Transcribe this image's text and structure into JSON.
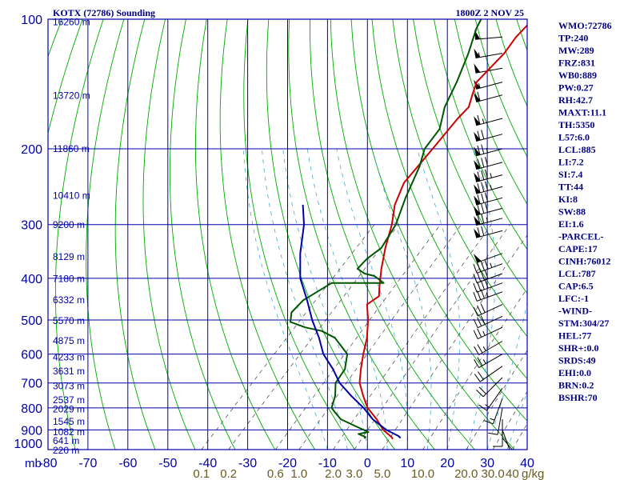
{
  "chart_data": {
    "type": "line",
    "title": "KOTX (72786) Sounding",
    "timestamp": "1800Z  2 NOV 25",
    "pressure_unit_label": "mb",
    "y_scale": "log",
    "ylim": [
      1000,
      100
    ],
    "xlim": [
      -80,
      40
    ],
    "pressure_ticks": [
      100,
      200,
      300,
      400,
      500,
      600,
      700,
      800,
      900,
      1000
    ],
    "temperature_ticks": [
      -80,
      -70,
      -60,
      -50,
      -40,
      -30,
      -20,
      -10,
      0,
      10,
      20,
      30,
      40
    ],
    "temperature_tick_labels": [
      "-80",
      "-70",
      "-60",
      "-50",
      "-40",
      "-30",
      "-20",
      "-10",
      "0",
      "10",
      "20",
      "30",
      "40"
    ],
    "mixing_ratio_labels": [
      "0.1",
      "0.2",
      "0.6",
      "1.0",
      "2.0",
      "3.0",
      "5.0",
      "10.0",
      "20.0",
      "30.0",
      "40"
    ],
    "mixing_ratio_unit": "g/kg",
    "height_labels": [
      {
        "pressure": 101,
        "text": "16260 m"
      },
      {
        "pressure": 150,
        "text": "13720 m"
      },
      {
        "pressure": 199,
        "text": "11860 m"
      },
      {
        "pressure": 256,
        "text": "10410 m"
      },
      {
        "pressure": 299,
        "text": "9200 m"
      },
      {
        "pressure": 355,
        "text": "8129 m"
      },
      {
        "pressure": 399,
        "text": "7180 m"
      },
      {
        "pressure": 447,
        "text": "6332 m"
      },
      {
        "pressure": 500,
        "text": "5570 m"
      },
      {
        "pressure": 556,
        "text": "4875 m"
      },
      {
        "pressure": 608,
        "text": "4233 m"
      },
      {
        "pressure": 655,
        "text": "3631 m"
      },
      {
        "pressure": 708,
        "text": "3073 m"
      },
      {
        "pressure": 764,
        "text": "2537 m"
      },
      {
        "pressure": 803,
        "text": "2029 m"
      },
      {
        "pressure": 857,
        "text": "1545 m"
      },
      {
        "pressure": 906,
        "text": "1082 m"
      },
      {
        "pressure": 950,
        "text": "641 m"
      },
      {
        "pressure": 999,
        "text": "220 m"
      }
    ],
    "series": [
      {
        "name": "",
        "role": "temperature",
        "color": "#cc0000",
        "points": [
          [
            3.8,
            945
          ],
          [
            3.0,
            935
          ],
          [
            -0.8,
            900
          ],
          [
            -5,
            850
          ],
          [
            -10,
            800
          ],
          [
            -14,
            750
          ],
          [
            -18,
            700
          ],
          [
            -21,
            650
          ],
          [
            -24,
            600
          ],
          [
            -27,
            550
          ],
          [
            -31,
            500
          ],
          [
            -35,
            460
          ],
          [
            -34,
            440
          ],
          [
            -36,
            420
          ],
          [
            -40,
            380
          ],
          [
            -44,
            340
          ],
          [
            -48,
            300
          ],
          [
            -52,
            270
          ],
          [
            -55,
            240
          ],
          [
            -56,
            200
          ],
          [
            -57,
            170
          ],
          [
            -57,
            160
          ],
          [
            -59,
            150
          ],
          [
            -61,
            140
          ],
          [
            -61,
            120
          ],
          [
            -62,
            110
          ],
          [
            -62,
            100
          ]
        ]
      },
      {
        "name": "",
        "role": "dewpoint",
        "color": "#005500",
        "points": [
          [
            -3.5,
            942
          ],
          [
            -3.5,
            935
          ],
          [
            -6,
            920
          ],
          [
            -4,
            910
          ],
          [
            -9,
            880
          ],
          [
            -14,
            850
          ],
          [
            -17,
            820
          ],
          [
            -19,
            800
          ],
          [
            -21,
            750
          ],
          [
            -24,
            700
          ],
          [
            -25,
            650
          ],
          [
            -28,
            600
          ],
          [
            -35,
            550
          ],
          [
            -40,
            530
          ],
          [
            -45,
            520
          ],
          [
            -50,
            505
          ],
          [
            -52,
            480
          ],
          [
            -52,
            450
          ],
          [
            -49,
            410
          ],
          [
            -36,
            410
          ],
          [
            -40,
            395
          ],
          [
            -43,
            390
          ],
          [
            -46,
            380
          ],
          [
            -46,
            360
          ],
          [
            -45,
            340
          ],
          [
            -47,
            300
          ],
          [
            -51,
            260
          ],
          [
            -55,
            220
          ],
          [
            -58,
            200
          ],
          [
            -59,
            180
          ],
          [
            -63,
            160
          ],
          [
            -66,
            140
          ],
          [
            -70,
            120
          ],
          [
            -74,
            105
          ],
          [
            -75,
            100
          ]
        ]
      },
      {
        "name": "",
        "role": "parcel",
        "color": "#0000aa",
        "points": [
          [
            5.5,
            940
          ],
          [
            4.5,
            930
          ],
          [
            0,
            900
          ],
          [
            -6,
            850
          ],
          [
            -11,
            800
          ],
          [
            -17,
            750
          ],
          [
            -23,
            700
          ],
          [
            -28,
            650
          ],
          [
            -34,
            600
          ],
          [
            -39,
            550
          ],
          [
            -45,
            500
          ],
          [
            -51,
            450
          ],
          [
            -58,
            400
          ],
          [
            -64,
            350
          ],
          [
            -70,
            300
          ],
          [
            -75,
            270
          ]
        ]
      }
    ],
    "wind_barbs": [
      {
        "pressure": 100,
        "direction": 270,
        "speed": 45
      },
      {
        "pressure": 110,
        "direction": 265,
        "speed": 50
      },
      {
        "pressure": 120,
        "direction": 260,
        "speed": 55
      },
      {
        "pressure": 130,
        "direction": 260,
        "speed": 50
      },
      {
        "pressure": 140,
        "direction": 255,
        "speed": 55
      },
      {
        "pressure": 150,
        "direction": 255,
        "speed": 60
      },
      {
        "pressure": 170,
        "direction": 255,
        "speed": 65
      },
      {
        "pressure": 185,
        "direction": 255,
        "speed": 70
      },
      {
        "pressure": 200,
        "direction": 255,
        "speed": 75
      },
      {
        "pressure": 215,
        "direction": 255,
        "speed": 80
      },
      {
        "pressure": 230,
        "direction": 255,
        "speed": 85
      },
      {
        "pressure": 245,
        "direction": 255,
        "speed": 85
      },
      {
        "pressure": 260,
        "direction": 255,
        "speed": 80
      },
      {
        "pressure": 275,
        "direction": 255,
        "speed": 80
      },
      {
        "pressure": 290,
        "direction": 255,
        "speed": 75
      },
      {
        "pressure": 310,
        "direction": 255,
        "speed": 70
      },
      {
        "pressure": 350,
        "direction": 250,
        "speed": 50
      },
      {
        "pressure": 370,
        "direction": 250,
        "speed": 45
      },
      {
        "pressure": 390,
        "direction": 250,
        "speed": 40
      },
      {
        "pressure": 410,
        "direction": 250,
        "speed": 40
      },
      {
        "pressure": 430,
        "direction": 250,
        "speed": 35
      },
      {
        "pressure": 460,
        "direction": 245,
        "speed": 30
      },
      {
        "pressure": 490,
        "direction": 245,
        "speed": 30
      },
      {
        "pressure": 520,
        "direction": 245,
        "speed": 25
      },
      {
        "pressure": 560,
        "direction": 240,
        "speed": 25
      },
      {
        "pressure": 600,
        "direction": 240,
        "speed": 25
      },
      {
        "pressure": 640,
        "direction": 235,
        "speed": 20
      },
      {
        "pressure": 680,
        "direction": 225,
        "speed": 20
      },
      {
        "pressure": 720,
        "direction": 215,
        "speed": 15
      },
      {
        "pressure": 760,
        "direction": 200,
        "speed": 15
      },
      {
        "pressure": 800,
        "direction": 190,
        "speed": 10
      },
      {
        "pressure": 850,
        "direction": 180,
        "speed": 10
      },
      {
        "pressure": 900,
        "direction": 160,
        "speed": 5
      },
      {
        "pressure": 940,
        "direction": 140,
        "speed": 5
      }
    ],
    "indices": [
      "WMO:72786",
      "TP:240",
      "MW:289",
      "FRZ:831",
      "WB0:889",
      "PW:0.27",
      "RH:42.7",
      "MAXT:11.1",
      "TH:5350",
      "L57:6.0",
      "LCL:885",
      "LI:7.2",
      "SI:7.4",
      "TT:44",
      "KI:8",
      "SW:88",
      "EI:1.6",
      "-PARCEL-",
      "CAPE:17",
      "CINH:76012",
      "LCL:787",
      "CAP:6.5",
      "LFC:-1",
      "-WIND-",
      "STM:304/27",
      "HEL:77",
      "SHR+:0.0",
      "SRDS:49",
      "EHI:0.0",
      "BRN:0.2",
      "BSHR:70"
    ],
    "colors": {
      "frame": "#0000aa",
      "axis_text": "#0000aa",
      "dry_adiabat": "#00aa00",
      "moist_adiabat": "#44aacc",
      "mixing_ratio": "#555555",
      "title": "#000080",
      "mixing_label": "#6a5a20"
    }
  }
}
